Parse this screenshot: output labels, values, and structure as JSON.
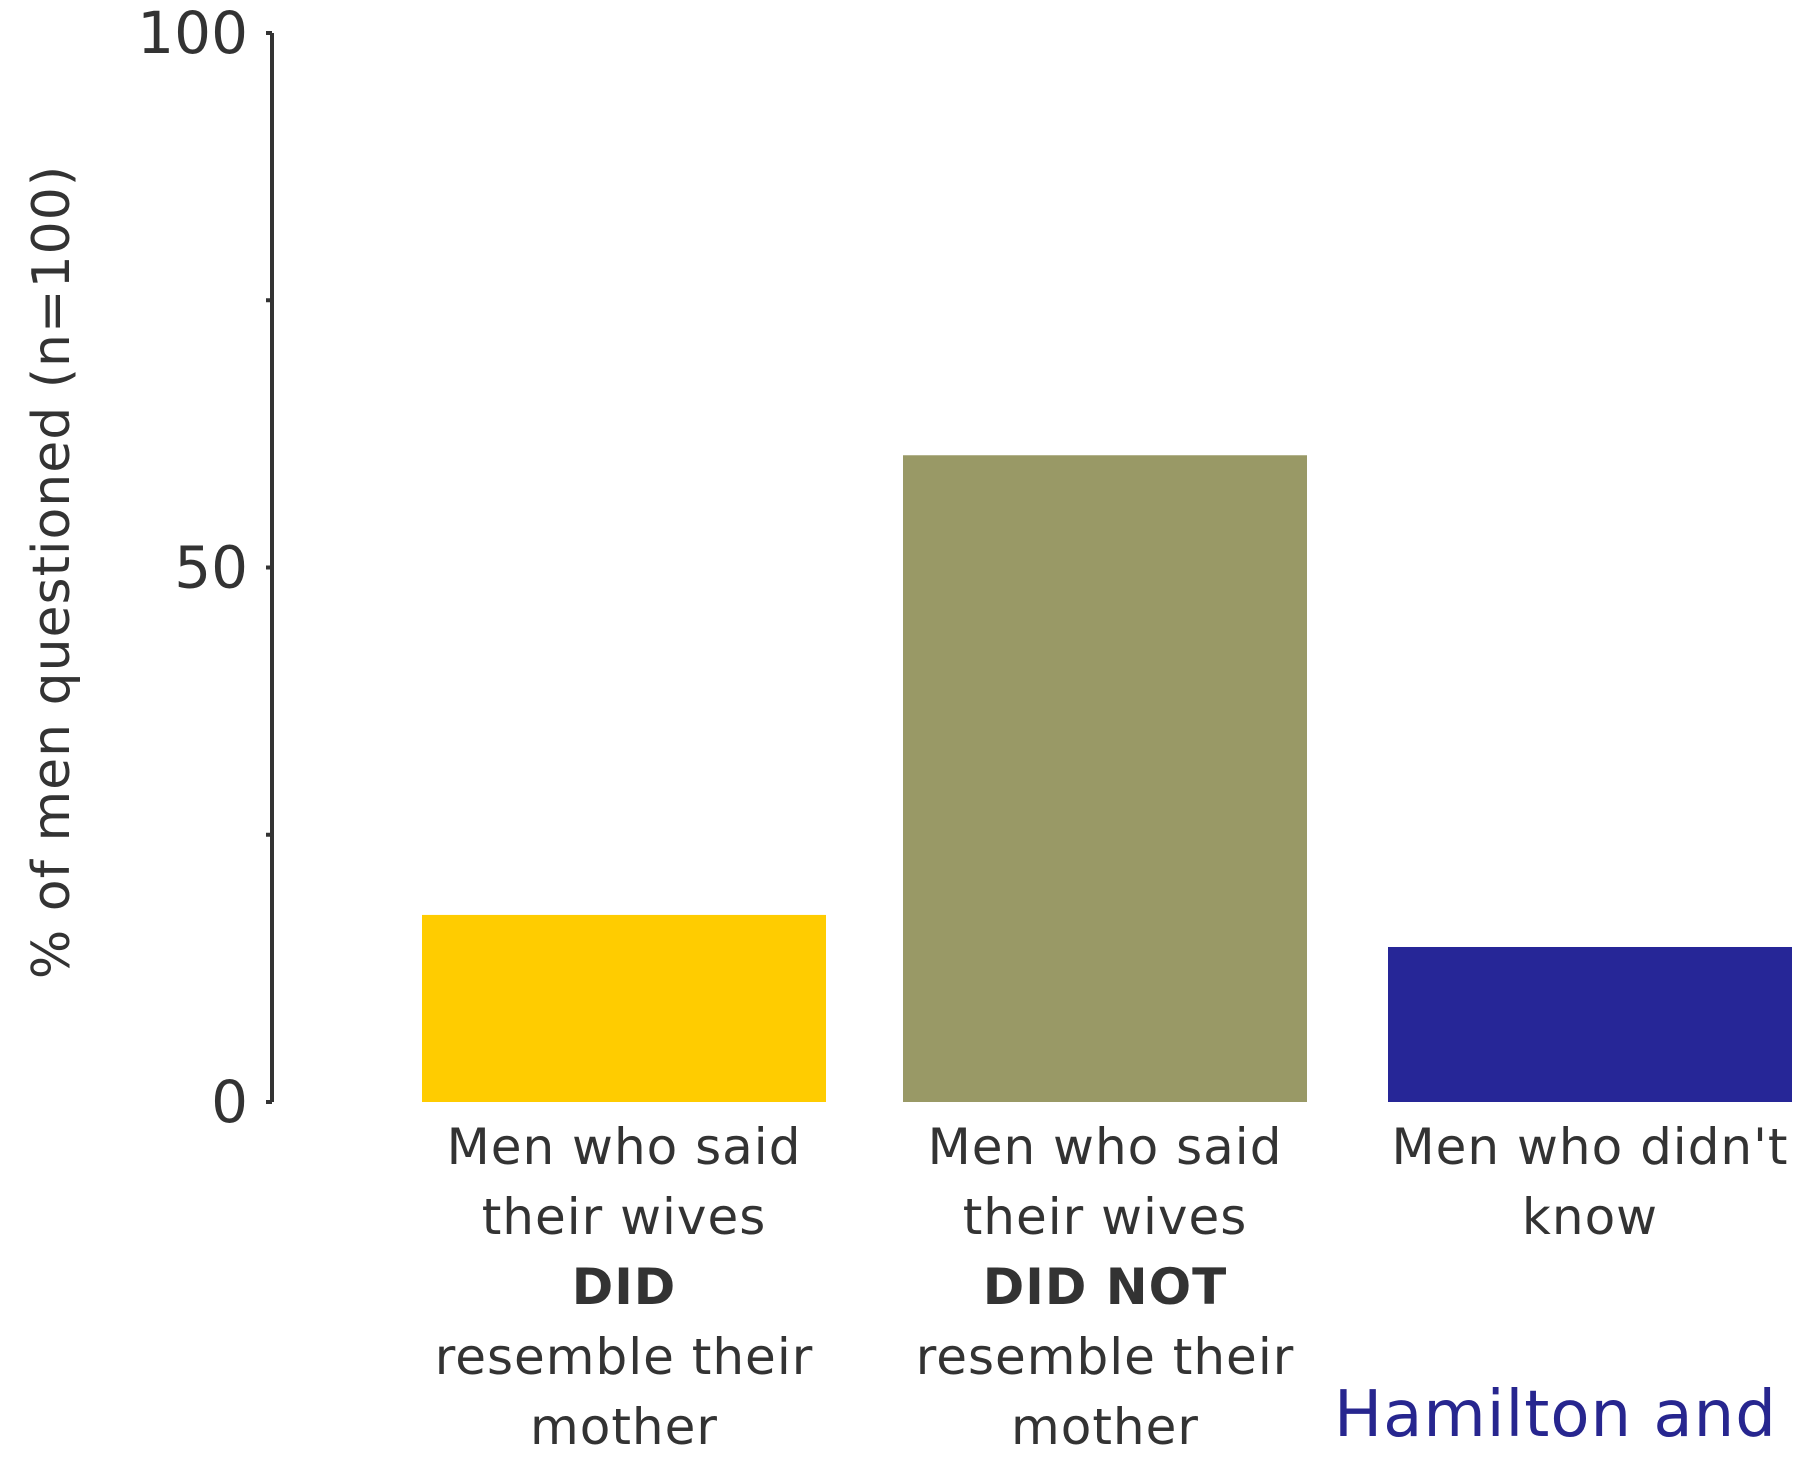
{
  "chart_data": {
    "type": "bar",
    "categories": [
      {
        "lines": [
          "Men who said",
          "their wives"
        ],
        "emphasis": "DID",
        "tail": [
          "resemble their",
          "mother"
        ]
      },
      {
        "lines": [
          "Men who said",
          "their wives"
        ],
        "emphasis": "DID NOT",
        "tail": [
          "resemble their",
          "mother"
        ]
      },
      {
        "lines": [
          "Men who didn't",
          "know"
        ],
        "emphasis": "",
        "tail": []
      }
    ],
    "values": [
      17.5,
      60.5,
      14.5
    ],
    "colors": [
      "#ffcc00",
      "#999966",
      "#262697"
    ],
    "ylabel": "% of men questioned (n=100)",
    "ylim": [
      0,
      100
    ],
    "yticks": [
      0,
      25,
      50,
      75,
      100
    ],
    "ytick_labels": [
      "0",
      "",
      "50",
      "",
      "100"
    ],
    "grid": false
  },
  "credit": "Hamilton and"
}
